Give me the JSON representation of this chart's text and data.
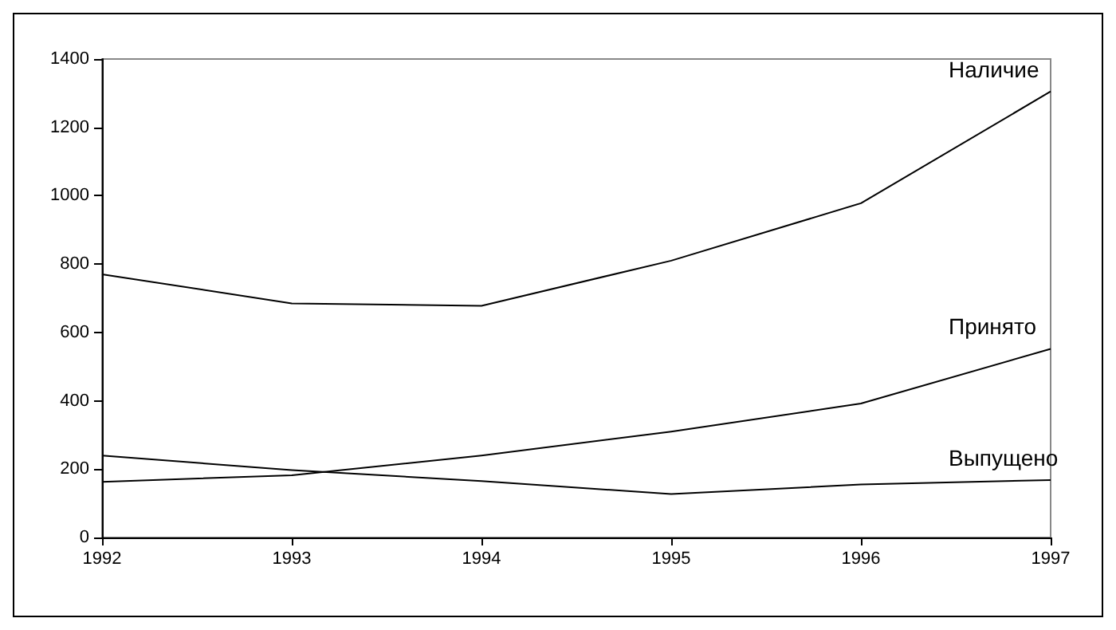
{
  "chart_data": {
    "type": "line",
    "x": [
      1992,
      1993,
      1994,
      1995,
      1996,
      1997
    ],
    "xlim": [
      1992,
      1997
    ],
    "xticks": [
      1992,
      1993,
      1994,
      1995,
      1996,
      1997
    ],
    "ylim": [
      0,
      1400
    ],
    "yticks": [
      0,
      200,
      400,
      600,
      800,
      1000,
      1200,
      1400
    ],
    "grid": false,
    "legend": false,
    "marker": "none",
    "line_style": "solid",
    "series": [
      {
        "name": "Наличие",
        "color": "#000000",
        "values": [
          770,
          685,
          678,
          810,
          978,
          1305
        ]
      },
      {
        "name": "Принято",
        "color": "#000000",
        "values": [
          163,
          182,
          240,
          310,
          392,
          552
        ]
      },
      {
        "name": "Выпущено",
        "color": "#000000",
        "values": [
          240,
          197,
          165,
          127,
          155,
          168
        ]
      }
    ]
  }
}
